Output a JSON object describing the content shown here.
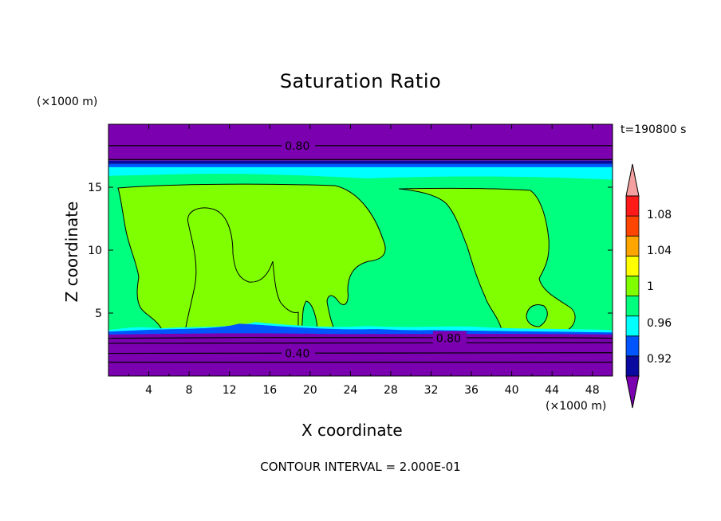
{
  "chart_data": {
    "type": "heatmap",
    "title": "Saturation Ratio",
    "xlabel": "X coordinate",
    "ylabel": "Z coordinate",
    "x_unit": "(×1000 m)",
    "y_unit": "(×1000 m)",
    "time_label": "t=190800 s",
    "footer": "CONTOUR INTERVAL = 2.000E-01",
    "xlim": [
      0,
      50
    ],
    "ylim": [
      0,
      20
    ],
    "x_ticks": [
      "4",
      "8",
      "12",
      "16",
      "20",
      "24",
      "28",
      "32",
      "36",
      "40",
      "44",
      "48"
    ],
    "y_ticks": [
      "5",
      "10",
      "15"
    ],
    "contour_labels": [
      {
        "text": "0.80",
        "x": 17.5,
        "z": 18.3
      },
      {
        "text": "0.80",
        "x": 32.5,
        "z": 3.0
      },
      {
        "text": "0.40",
        "x": 17.5,
        "z": 1.8
      }
    ],
    "colorbar": {
      "labels": [
        "1.08",
        "1.04",
        "1",
        "0.96",
        "0.92"
      ],
      "levels": [
        {
          "color": "#7b00b0"
        },
        {
          "color": "#0a0aa0"
        },
        {
          "color": "#0055ff"
        },
        {
          "color": "#00ffff"
        },
        {
          "color": "#00ff7f"
        },
        {
          "color": "#7fff00"
        },
        {
          "color": "#ffff00"
        },
        {
          "color": "#ffa500"
        },
        {
          "color": "#ff4500"
        },
        {
          "color": "#ff1a1a"
        },
        {
          "color": "#f5a0a0"
        }
      ]
    },
    "colors": {
      "purple": "#7b00b0",
      "navy": "#0a0aa0",
      "blue": "#0055ff",
      "cyan": "#00ffff",
      "springgreen": "#00ff7f",
      "lime": "#7fff00"
    },
    "regions": {
      "stratosphere_top": 18.3,
      "cloud_base": 3.4,
      "lower_contour": 1.8
    }
  }
}
